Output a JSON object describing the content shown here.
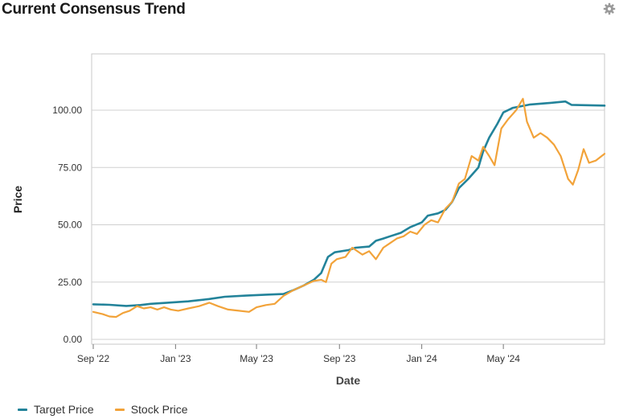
{
  "header": {
    "title": "Current Consensus Trend",
    "settings_icon": "gear-icon"
  },
  "chart_data": {
    "type": "line",
    "xlabel": "Date",
    "ylabel": "Price",
    "ylim": [
      0,
      125
    ],
    "xlim": [
      "2022-09-01",
      "2024-09-28"
    ],
    "y_ticks": [
      {
        "value": 0,
        "label": "0.00"
      },
      {
        "value": 25,
        "label": "25.00"
      },
      {
        "value": 50,
        "label": "50.00"
      },
      {
        "value": 75,
        "label": "75.00"
      },
      {
        "value": 100,
        "label": "100.00"
      }
    ],
    "x_ticks": [
      {
        "date": "2022-09-01",
        "label": "Sep '22"
      },
      {
        "date": "2023-01-01",
        "label": "Jan '23"
      },
      {
        "date": "2023-05-01",
        "label": "May '23"
      },
      {
        "date": "2023-09-01",
        "label": "Sep '23"
      },
      {
        "date": "2024-01-01",
        "label": "Jan '24"
      },
      {
        "date": "2024-05-01",
        "label": "May '24"
      }
    ],
    "grid": "horizontal",
    "legend_position": "bottom-left",
    "series": [
      {
        "name": "Target Price",
        "color": "#23839a",
        "points": [
          [
            "2022-09-01",
            15.3
          ],
          [
            "2022-09-25",
            15.1
          ],
          [
            "2022-10-20",
            14.6
          ],
          [
            "2022-11-10",
            15.0
          ],
          [
            "2022-11-25",
            15.5
          ],
          [
            "2022-12-20",
            16.0
          ],
          [
            "2023-01-20",
            16.6
          ],
          [
            "2023-02-20",
            17.6
          ],
          [
            "2023-03-15",
            18.6
          ],
          [
            "2023-04-15",
            19.1
          ],
          [
            "2023-05-15",
            19.5
          ],
          [
            "2023-06-10",
            19.8
          ],
          [
            "2023-06-25",
            21.5
          ],
          [
            "2023-07-10",
            23.5
          ],
          [
            "2023-07-25",
            26.0
          ],
          [
            "2023-08-05",
            29.0
          ],
          [
            "2023-08-15",
            36.0
          ],
          [
            "2023-08-25",
            38.0
          ],
          [
            "2023-09-15",
            39.0
          ],
          [
            "2023-09-25",
            40.0
          ],
          [
            "2023-10-15",
            40.5
          ],
          [
            "2023-10-25",
            43.0
          ],
          [
            "2023-11-05",
            44.0
          ],
          [
            "2023-11-15",
            45.0
          ],
          [
            "2023-12-01",
            46.5
          ],
          [
            "2023-12-15",
            49.0
          ],
          [
            "2024-01-01",
            51.0
          ],
          [
            "2024-01-10",
            54.0
          ],
          [
            "2024-01-25",
            55.0
          ],
          [
            "2024-02-05",
            56.5
          ],
          [
            "2024-02-15",
            60.0
          ],
          [
            "2024-02-25",
            66.0
          ],
          [
            "2024-03-10",
            70.0
          ],
          [
            "2024-03-25",
            75.0
          ],
          [
            "2024-04-01",
            82.0
          ],
          [
            "2024-04-10",
            88.0
          ],
          [
            "2024-04-22",
            94.0
          ],
          [
            "2024-05-01",
            99.0
          ],
          [
            "2024-05-15",
            101.0
          ],
          [
            "2024-06-10",
            102.5
          ],
          [
            "2024-07-10",
            103.2
          ],
          [
            "2024-08-01",
            103.8
          ],
          [
            "2024-08-10",
            102.3
          ],
          [
            "2024-09-28",
            102.0
          ]
        ]
      },
      {
        "name": "Stock Price",
        "color": "#f2a33a",
        "points": [
          [
            "2022-09-01",
            12.0
          ],
          [
            "2022-09-15",
            11.0
          ],
          [
            "2022-09-25",
            10.0
          ],
          [
            "2022-10-05",
            9.8
          ],
          [
            "2022-10-15",
            11.5
          ],
          [
            "2022-10-25",
            12.5
          ],
          [
            "2022-11-05",
            14.5
          ],
          [
            "2022-11-15",
            13.5
          ],
          [
            "2022-11-25",
            14.0
          ],
          [
            "2022-12-05",
            13.0
          ],
          [
            "2022-12-15",
            14.0
          ],
          [
            "2022-12-25",
            13.0
          ],
          [
            "2023-01-05",
            12.5
          ],
          [
            "2023-01-20",
            13.5
          ],
          [
            "2023-02-05",
            14.5
          ],
          [
            "2023-02-20",
            16.0
          ],
          [
            "2023-03-05",
            14.5
          ],
          [
            "2023-03-20",
            13.0
          ],
          [
            "2023-04-05",
            12.5
          ],
          [
            "2023-04-20",
            12.0
          ],
          [
            "2023-05-01",
            14.0
          ],
          [
            "2023-05-15",
            15.0
          ],
          [
            "2023-05-28",
            15.5
          ],
          [
            "2023-06-10",
            19.0
          ],
          [
            "2023-06-25",
            21.5
          ],
          [
            "2023-07-10",
            23.5
          ],
          [
            "2023-07-25",
            25.5
          ],
          [
            "2023-08-05",
            26.0
          ],
          [
            "2023-08-12",
            25.0
          ],
          [
            "2023-08-20",
            33.0
          ],
          [
            "2023-08-28",
            35.0
          ],
          [
            "2023-09-10",
            36.0
          ],
          [
            "2023-09-20",
            40.0
          ],
          [
            "2023-10-05",
            37.0
          ],
          [
            "2023-10-15",
            38.5
          ],
          [
            "2023-10-25",
            35.0
          ],
          [
            "2023-11-05",
            40.0
          ],
          [
            "2023-11-15",
            42.0
          ],
          [
            "2023-11-25",
            44.0
          ],
          [
            "2023-12-05",
            45.0
          ],
          [
            "2023-12-15",
            47.0
          ],
          [
            "2023-12-25",
            46.0
          ],
          [
            "2024-01-05",
            50.0
          ],
          [
            "2024-01-15",
            52.0
          ],
          [
            "2024-01-25",
            51.0
          ],
          [
            "2024-02-05",
            57.0
          ],
          [
            "2024-02-15",
            60.0
          ],
          [
            "2024-02-25",
            68.0
          ],
          [
            "2024-03-05",
            70.0
          ],
          [
            "2024-03-15",
            80.0
          ],
          [
            "2024-03-25",
            78.0
          ],
          [
            "2024-04-01",
            84.0
          ],
          [
            "2024-04-10",
            80.0
          ],
          [
            "2024-04-18",
            76.0
          ],
          [
            "2024-04-28",
            92.0
          ],
          [
            "2024-05-08",
            96.0
          ],
          [
            "2024-05-20",
            100.0
          ],
          [
            "2024-05-30",
            105.0
          ],
          [
            "2024-06-05",
            95.0
          ],
          [
            "2024-06-15",
            88.0
          ],
          [
            "2024-06-25",
            90.0
          ],
          [
            "2024-07-05",
            88.0
          ],
          [
            "2024-07-15",
            85.0
          ],
          [
            "2024-07-25",
            80.0
          ],
          [
            "2024-08-05",
            70.0
          ],
          [
            "2024-08-12",
            67.5
          ],
          [
            "2024-08-20",
            74.0
          ],
          [
            "2024-08-28",
            83.0
          ],
          [
            "2024-09-05",
            77.0
          ],
          [
            "2024-09-15",
            78.0
          ],
          [
            "2024-09-28",
            81.0
          ]
        ]
      }
    ]
  }
}
